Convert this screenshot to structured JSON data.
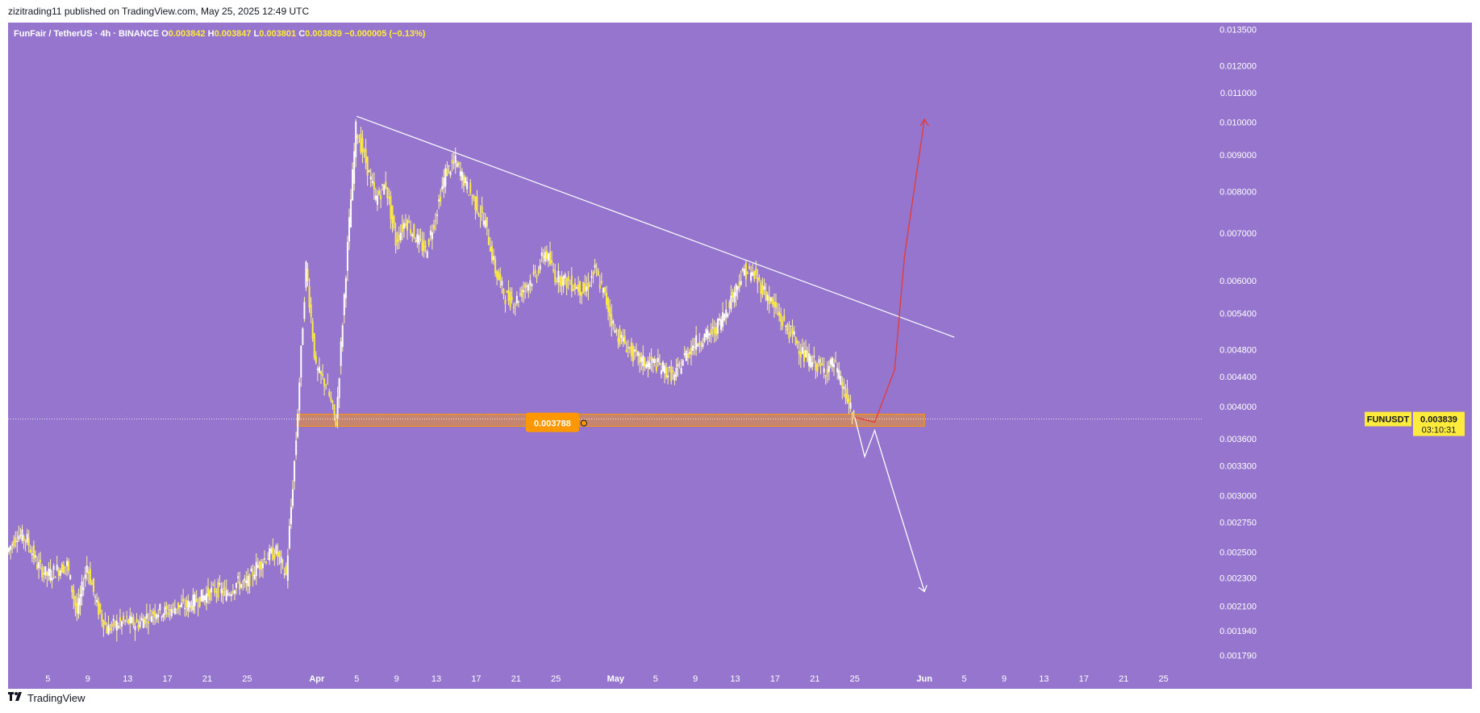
{
  "published_line": "zizitrading11 published on TradingView.com, May 25, 2025 12:49 UTC",
  "footer": {
    "brand": "TradingView",
    "logo": "tv-logo-icon"
  },
  "colors": {
    "background": "#9575cd",
    "candle": "#ffeb3b",
    "candle_wick": "#fff59d",
    "trendline": "#ffffff",
    "zone_fill": "#ff9800",
    "price_badge": "#ff9800",
    "current_price_badge": "#ffeb3b",
    "red_path": "#e53935",
    "white_path": "#ffffff"
  },
  "chart_data": {
    "type": "candlestick",
    "symbol_line": {
      "name": "FunFair / TetherUS · 4h · BINANCE",
      "o_label": "O",
      "o_value": "0.003842",
      "h_label": "H",
      "h_value": "0.003847",
      "l_label": "L",
      "l_value": "0.003801",
      "c_label": "C",
      "c_value": "0.003839",
      "change": "−0.000005 (−0.13%)"
    },
    "y_scale": "log",
    "y_ticks": [
      "0.013500",
      "0.012000",
      "0.011000",
      "0.010000",
      "0.009000",
      "0.008000",
      "0.007000",
      "0.006000",
      "0.005400",
      "0.004800",
      "0.004400",
      "0.004000",
      "0.003600",
      "0.003300",
      "0.003000",
      "0.002750",
      "0.002500",
      "0.002300",
      "0.002100",
      "0.001940",
      "0.001790"
    ],
    "x_ticks": [
      "5",
      "9",
      "13",
      "17",
      "21",
      "25",
      "Apr",
      "5",
      "9",
      "13",
      "17",
      "21",
      "25",
      "May",
      "5",
      "9",
      "13",
      "17",
      "21",
      "25",
      "Jun",
      "5",
      "9",
      "13",
      "17",
      "21",
      "25"
    ],
    "x_tick_dates": [
      "2025-03-05",
      "2025-03-09",
      "2025-03-13",
      "2025-03-17",
      "2025-03-21",
      "2025-03-25",
      "2025-04-01",
      "2025-04-05",
      "2025-04-09",
      "2025-04-13",
      "2025-04-17",
      "2025-04-21",
      "2025-04-25",
      "2025-05-01",
      "2025-05-05",
      "2025-05-09",
      "2025-05-13",
      "2025-05-17",
      "2025-05-21",
      "2025-05-25",
      "2025-06-01",
      "2025-06-05",
      "2025-06-09",
      "2025-06-13",
      "2025-06-17",
      "2025-06-21",
      "2025-06-25"
    ],
    "x_range": [
      "2025-03-01",
      "2025-06-29"
    ],
    "y_range": [
      0.00172,
      0.0138
    ],
    "price_path": [
      [
        "2025-03-01",
        0.0025
      ],
      [
        "2025-03-02",
        0.00265
      ],
      [
        "2025-03-03",
        0.0026
      ],
      [
        "2025-03-04",
        0.0024
      ],
      [
        "2025-03-05",
        0.00232
      ],
      [
        "2025-03-06",
        0.00236
      ],
      [
        "2025-03-07",
        0.0024
      ],
      [
        "2025-03-08",
        0.00205
      ],
      [
        "2025-03-09",
        0.0024
      ],
      [
        "2025-03-10",
        0.0021
      ],
      [
        "2025-03-11",
        0.00195
      ],
      [
        "2025-03-12",
        0.00198
      ],
      [
        "2025-03-13",
        0.002
      ],
      [
        "2025-03-14",
        0.00198
      ],
      [
        "2025-03-15",
        0.00203
      ],
      [
        "2025-03-16",
        0.00207
      ],
      [
        "2025-03-17",
        0.00206
      ],
      [
        "2025-03-18",
        0.0021
      ],
      [
        "2025-03-19",
        0.0021
      ],
      [
        "2025-03-20",
        0.00214
      ],
      [
        "2025-03-21",
        0.00218
      ],
      [
        "2025-03-22",
        0.00222
      ],
      [
        "2025-03-23",
        0.00218
      ],
      [
        "2025-03-24",
        0.00226
      ],
      [
        "2025-03-25",
        0.00225
      ],
      [
        "2025-03-26",
        0.00238
      ],
      [
        "2025-03-27",
        0.00246
      ],
      [
        "2025-03-28",
        0.0025
      ],
      [
        "2025-03-29",
        0.00232
      ],
      [
        "2025-03-30",
        0.0036
      ],
      [
        "2025-03-31",
        0.0063
      ],
      [
        "2025-04-01",
        0.0045
      ],
      [
        "2025-04-02",
        0.0043
      ],
      [
        "2025-04-03",
        0.0038
      ],
      [
        "2025-04-04",
        0.0062
      ],
      [
        "2025-04-05",
        0.0098
      ],
      [
        "2025-04-06",
        0.0088
      ],
      [
        "2025-04-07",
        0.0078
      ],
      [
        "2025-04-08",
        0.0082
      ],
      [
        "2025-04-09",
        0.0068
      ],
      [
        "2025-04-10",
        0.0073
      ],
      [
        "2025-04-11",
        0.0069
      ],
      [
        "2025-04-12",
        0.0066
      ],
      [
        "2025-04-13",
        0.0074
      ],
      [
        "2025-04-14",
        0.0085
      ],
      [
        "2025-04-15",
        0.0088
      ],
      [
        "2025-04-16",
        0.0082
      ],
      [
        "2025-04-17",
        0.0077
      ],
      [
        "2025-04-18",
        0.0072
      ],
      [
        "2025-04-19",
        0.0062
      ],
      [
        "2025-04-20",
        0.0057
      ],
      [
        "2025-04-21",
        0.0056
      ],
      [
        "2025-04-22",
        0.0059
      ],
      [
        "2025-04-23",
        0.0061
      ],
      [
        "2025-04-24",
        0.0066
      ],
      [
        "2025-04-25",
        0.0061
      ],
      [
        "2025-04-26",
        0.006
      ],
      [
        "2025-04-27",
        0.0059
      ],
      [
        "2025-04-28",
        0.0058
      ],
      [
        "2025-04-29",
        0.0062
      ],
      [
        "2025-04-30",
        0.0057
      ],
      [
        "2025-05-01",
        0.0051
      ],
      [
        "2025-05-02",
        0.0049
      ],
      [
        "2025-05-03",
        0.0047
      ],
      [
        "2025-05-04",
        0.0046
      ],
      [
        "2025-05-05",
        0.0046
      ],
      [
        "2025-05-06",
        0.0045
      ],
      [
        "2025-05-07",
        0.0044
      ],
      [
        "2025-05-08",
        0.0047
      ],
      [
        "2025-05-09",
        0.0049
      ],
      [
        "2025-05-10",
        0.005
      ],
      [
        "2025-05-11",
        0.0051
      ],
      [
        "2025-05-12",
        0.0054
      ],
      [
        "2025-05-13",
        0.0058
      ],
      [
        "2025-05-14",
        0.0062
      ],
      [
        "2025-05-15",
        0.0061
      ],
      [
        "2025-05-16",
        0.0058
      ],
      [
        "2025-05-17",
        0.0055
      ],
      [
        "2025-05-18",
        0.0052
      ],
      [
        "2025-05-19",
        0.005
      ],
      [
        "2025-05-20",
        0.0047
      ],
      [
        "2025-05-21",
        0.0046
      ],
      [
        "2025-05-22",
        0.0045
      ],
      [
        "2025-05-23",
        0.0046
      ],
      [
        "2025-05-24",
        0.0042
      ],
      [
        "2025-05-25",
        0.00384
      ]
    ],
    "current_price": "0.003839",
    "current_symbol_label": "FUNUSDT",
    "countdown": "03:10:31",
    "support_zone": {
      "low": 0.00375,
      "high": 0.0039,
      "label": "0.003788",
      "value": 0.003788,
      "from": "2025-03-30",
      "to": "2025-06-01"
    },
    "trendline": {
      "from": [
        "2025-04-05",
        0.0102
      ],
      "to": [
        "2025-06-04",
        0.005
      ]
    },
    "projection_up": [
      [
        "2025-05-25",
        0.00386
      ],
      [
        "2025-05-27",
        0.0038
      ],
      [
        "2025-05-29",
        0.0045
      ],
      [
        "2025-05-30",
        0.0065
      ],
      [
        "2025-06-01",
        0.0101
      ]
    ],
    "projection_down": [
      [
        "2025-05-25",
        0.00386
      ],
      [
        "2025-05-26",
        0.0034
      ],
      [
        "2025-05-27",
        0.0037
      ],
      [
        "2025-05-29",
        0.003
      ],
      [
        "2025-06-01",
        0.0022
      ]
    ]
  }
}
